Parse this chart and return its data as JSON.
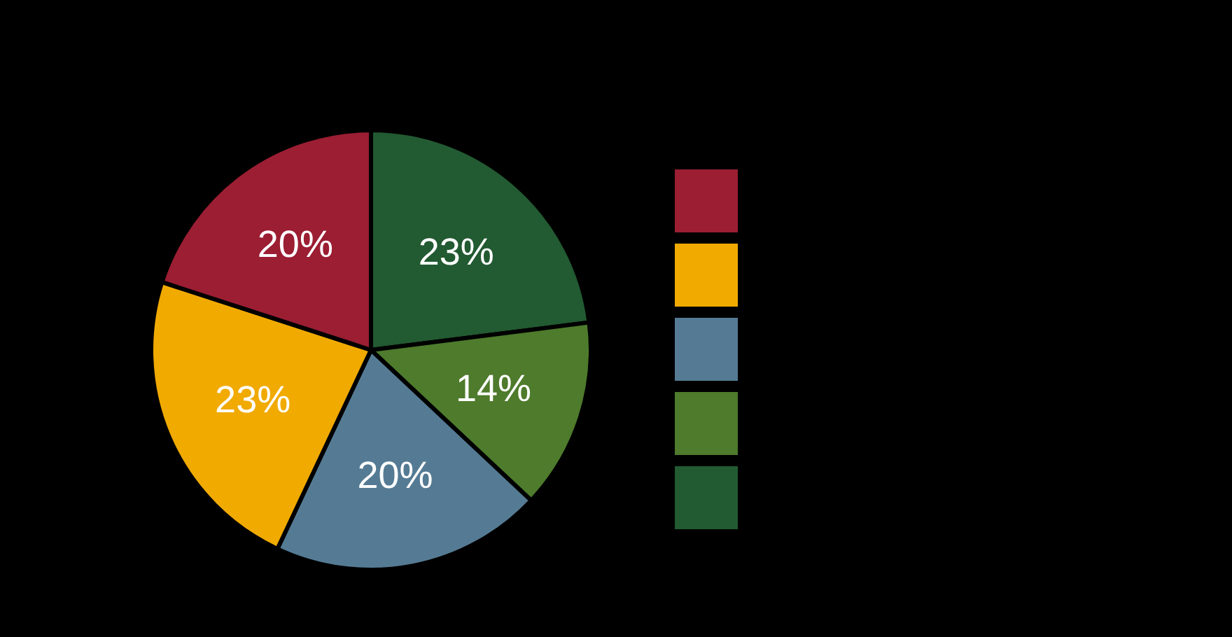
{
  "chart_data": {
    "type": "pie",
    "categories": [
      null,
      null,
      null,
      null,
      null
    ],
    "values": [
      23,
      14,
      20,
      23,
      20
    ],
    "colors": [
      "#225a32",
      "#4e7b2c",
      "#557b94",
      "#f0aa00",
      "#9b1e33"
    ],
    "value_labels": [
      "23%",
      "14%",
      "20%",
      "23%",
      "20%"
    ]
  }
}
